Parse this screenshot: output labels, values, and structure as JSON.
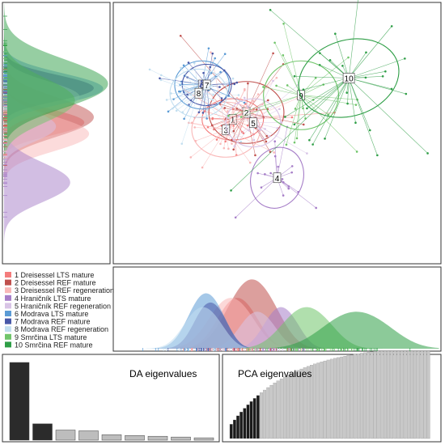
{
  "chart_data": {
    "type": "discriminant-analysis-panel",
    "scatter": {
      "type": "scatter",
      "groups": [
        {
          "id": "1",
          "name": "1 Dreisessel LTS mature",
          "color": "#f47c7c",
          "center": [
            0.55,
            0.1
          ],
          "r": [
            0.45,
            0.3
          ]
        },
        {
          "id": "2",
          "name": "2 Dreisessel REF mature",
          "color": "#c0504d",
          "center": [
            0.75,
            0.2
          ],
          "r": [
            0.55,
            0.45
          ]
        },
        {
          "id": "3",
          "name": "3 Dreisessel REF regeneration",
          "color": "#f9b8b8",
          "center": [
            0.45,
            -0.05
          ],
          "r": [
            0.5,
            0.4
          ]
        },
        {
          "id": "4",
          "name": "4 Hraničník LTS mature",
          "color": "#a67ec8",
          "center": [
            1.2,
            -0.75
          ],
          "r": [
            0.38,
            0.45
          ]
        },
        {
          "id": "5",
          "name": "5 Hraničník REF regeneration",
          "color": "#d8c4e6",
          "center": [
            0.85,
            0.05
          ],
          "r": [
            0.4,
            0.35
          ]
        },
        {
          "id": "6",
          "name": "6 Modrava LTS mature",
          "color": "#5b9bd5",
          "center": [
            0.1,
            0.6
          ],
          "r": [
            0.4,
            0.35
          ]
        },
        {
          "id": "7",
          "name": "7 Modrava REF mature",
          "color": "#4858a8",
          "center": [
            0.17,
            0.6
          ],
          "r": [
            0.36,
            0.3
          ]
        },
        {
          "id": "8",
          "name": "8 Modrava REF regeneration",
          "color": "#c3dff0",
          "center": [
            0.05,
            0.48
          ],
          "r": [
            0.42,
            0.35
          ]
        },
        {
          "id": "9",
          "name": "9 Smrčina LTS mature",
          "color": "#70c56a",
          "center": [
            1.55,
            0.45
          ],
          "r": [
            0.55,
            0.5
          ]
        },
        {
          "id": "10",
          "name": "10 Smrčina REF mature",
          "color": "#2e9e46",
          "center": [
            2.25,
            0.7
          ],
          "r": [
            0.75,
            0.55
          ]
        }
      ]
    },
    "da_eigenvalues": {
      "type": "bar",
      "title": "DA eigenvalues",
      "values": [
        100,
        21,
        13,
        12,
        7,
        6,
        5,
        4,
        3
      ],
      "highlight_count": 2
    },
    "pca_eigenvalues": {
      "type": "bar",
      "title": "PCA eigenvalues",
      "n_bars": 60,
      "retained": 9
    }
  }
}
